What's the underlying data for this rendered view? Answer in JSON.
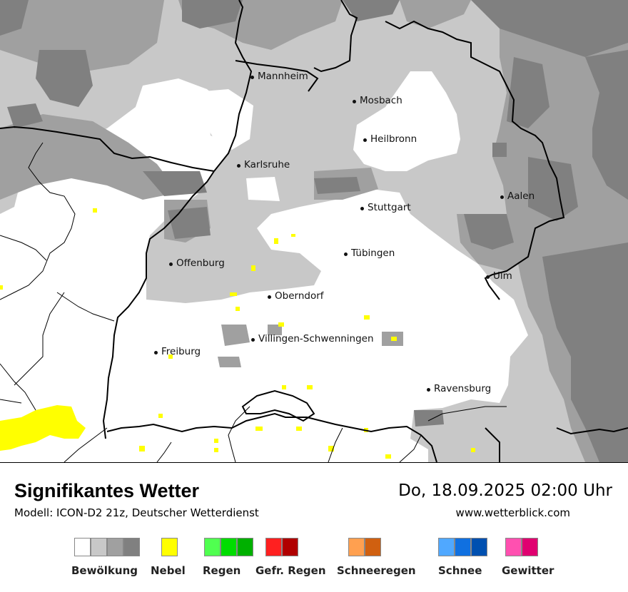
{
  "map": {
    "cities": [
      {
        "name": "Mannheim"
      },
      {
        "name": "Mosbach"
      },
      {
        "name": "Heilbronn"
      },
      {
        "name": "Karlsruhe"
      },
      {
        "name": "Aalen"
      },
      {
        "name": "Stuttgart"
      },
      {
        "name": "Tübingen"
      },
      {
        "name": "Offenburg"
      },
      {
        "name": "Ulm"
      },
      {
        "name": "Oberndorf"
      },
      {
        "name": "Villingen-Schwenningen"
      },
      {
        "name": "Freiburg"
      },
      {
        "name": "Ravensburg"
      }
    ],
    "colors": {
      "cloud_light": "#c8c8c8",
      "cloud_medium": "#a0a0a0",
      "cloud_dark": "#808080",
      "fog": "#ffff00",
      "border": "#000000"
    }
  },
  "footer": {
    "title": "Signifikantes Wetter",
    "subtitle": "Modell: ICON-D2 21z, Deutscher Wetterdienst",
    "datetime": "Do, 18.09.2025 02:00 Uhr",
    "website": "www.wetterblick.com"
  },
  "legend": [
    {
      "label": "Bewölkung",
      "colors": [
        "#ffffff",
        "#c8c8c8",
        "#a0a0a0",
        "#808080"
      ]
    },
    {
      "label": "Nebel",
      "colors": [
        "#ffff00"
      ]
    },
    {
      "label": "Regen",
      "colors": [
        "#50ff50",
        "#00dd00",
        "#00b000"
      ]
    },
    {
      "label": "Gefr. Regen",
      "colors": [
        "#ff2020",
        "#b00000"
      ]
    },
    {
      "label": "Schneeregen",
      "colors": [
        "#ffa050",
        "#d06010"
      ]
    },
    {
      "label": "Schnee",
      "colors": [
        "#50a8ff",
        "#1070e0",
        "#0050b0"
      ]
    },
    {
      "label": "Gewitter",
      "colors": [
        "#ff50b0",
        "#e00070"
      ]
    }
  ]
}
